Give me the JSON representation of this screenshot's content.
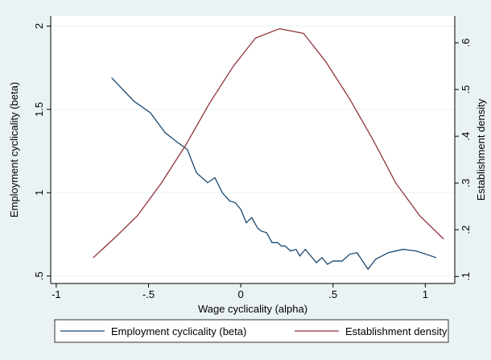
{
  "chart_data": {
    "type": "line",
    "x_label": "Wage cyclicality (alpha)",
    "y_label": "Employment cyclicality (beta)",
    "y2_label": "Establishment density",
    "xlim": [
      -1.03,
      1.16
    ],
    "xticks": [
      {
        "value": -1,
        "label": "-1"
      },
      {
        "value": -0.5,
        "label": "-.5"
      },
      0,
      {
        "value": 0.5,
        "label": ".5"
      },
      1
    ],
    "ylim": [
      0.455,
      2.06
    ],
    "yticks": [
      {
        "value": 0.5,
        "label": ".5"
      },
      1,
      1.5,
      2
    ],
    "y2lim": [
      0.085,
      0.657
    ],
    "y2ticks": [
      {
        "value": 0.1,
        "label": ".1"
      },
      {
        "value": 0.2,
        "label": ".2"
      },
      {
        "value": 0.3,
        "label": ".3"
      },
      {
        "value": 0.4,
        "label": ".4"
      },
      {
        "value": 0.5,
        "label": ".5"
      },
      {
        "value": 0.6,
        "label": ".6"
      }
    ],
    "grid": true,
    "legend": "bottom",
    "series": [
      {
        "name": "Employment cyclicality (beta)",
        "color": "#1a476f",
        "x": [
          -0.7,
          -0.58,
          -0.49,
          -0.41,
          -0.34,
          -0.29,
          -0.24,
          -0.18,
          -0.14,
          -0.1,
          -0.06,
          -0.03,
          0.0,
          0.03,
          0.06,
          0.09,
          0.11,
          0.14,
          0.17,
          0.2,
          0.22,
          0.24,
          0.27,
          0.3,
          0.32,
          0.35,
          0.38,
          0.41,
          0.44,
          0.47,
          0.5,
          0.55,
          0.59,
          0.63,
          0.69,
          0.73,
          0.8,
          0.88,
          0.95,
          1.06
        ],
        "values": [
          1.69,
          1.55,
          1.48,
          1.36,
          1.3,
          1.26,
          1.12,
          1.06,
          1.09,
          1.0,
          0.95,
          0.94,
          0.9,
          0.82,
          0.85,
          0.79,
          0.77,
          0.76,
          0.7,
          0.7,
          0.68,
          0.68,
          0.65,
          0.66,
          0.62,
          0.66,
          0.62,
          0.58,
          0.61,
          0.57,
          0.59,
          0.59,
          0.63,
          0.64,
          0.54,
          0.6,
          0.64,
          0.66,
          0.65,
          0.61
        ]
      },
      {
        "name": "Establishment density",
        "color": "#90353b",
        "axis": "y2",
        "x": [
          -0.8,
          -0.69,
          -0.56,
          -0.43,
          -0.3,
          -0.17,
          -0.04,
          0.08,
          0.21,
          0.34,
          0.46,
          0.59,
          0.72,
          0.84,
          0.97,
          1.1
        ],
        "values": [
          0.14,
          0.18,
          0.23,
          0.3,
          0.38,
          0.47,
          0.55,
          0.61,
          0.63,
          0.62,
          0.56,
          0.48,
          0.39,
          0.3,
          0.23,
          0.18
        ]
      }
    ]
  }
}
